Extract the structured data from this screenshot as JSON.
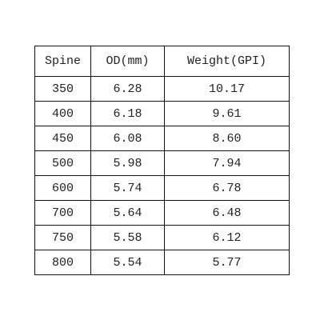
{
  "table": {
    "header": [
      "Spine",
      "OD(mm)",
      "Weight(GPI)"
    ],
    "rows": [
      [
        "350",
        "6.28",
        "10.17"
      ],
      [
        "400",
        "6.18",
        "9.61"
      ],
      [
        "450",
        "6.08",
        "8.60"
      ],
      [
        "500",
        "5.98",
        "7.94"
      ],
      [
        "600",
        "5.74",
        "6.78"
      ],
      [
        "700",
        "5.64",
        "6.48"
      ],
      [
        "750",
        "5.58",
        "6.12"
      ],
      [
        "800",
        "5.54",
        "5.77"
      ]
    ]
  }
}
